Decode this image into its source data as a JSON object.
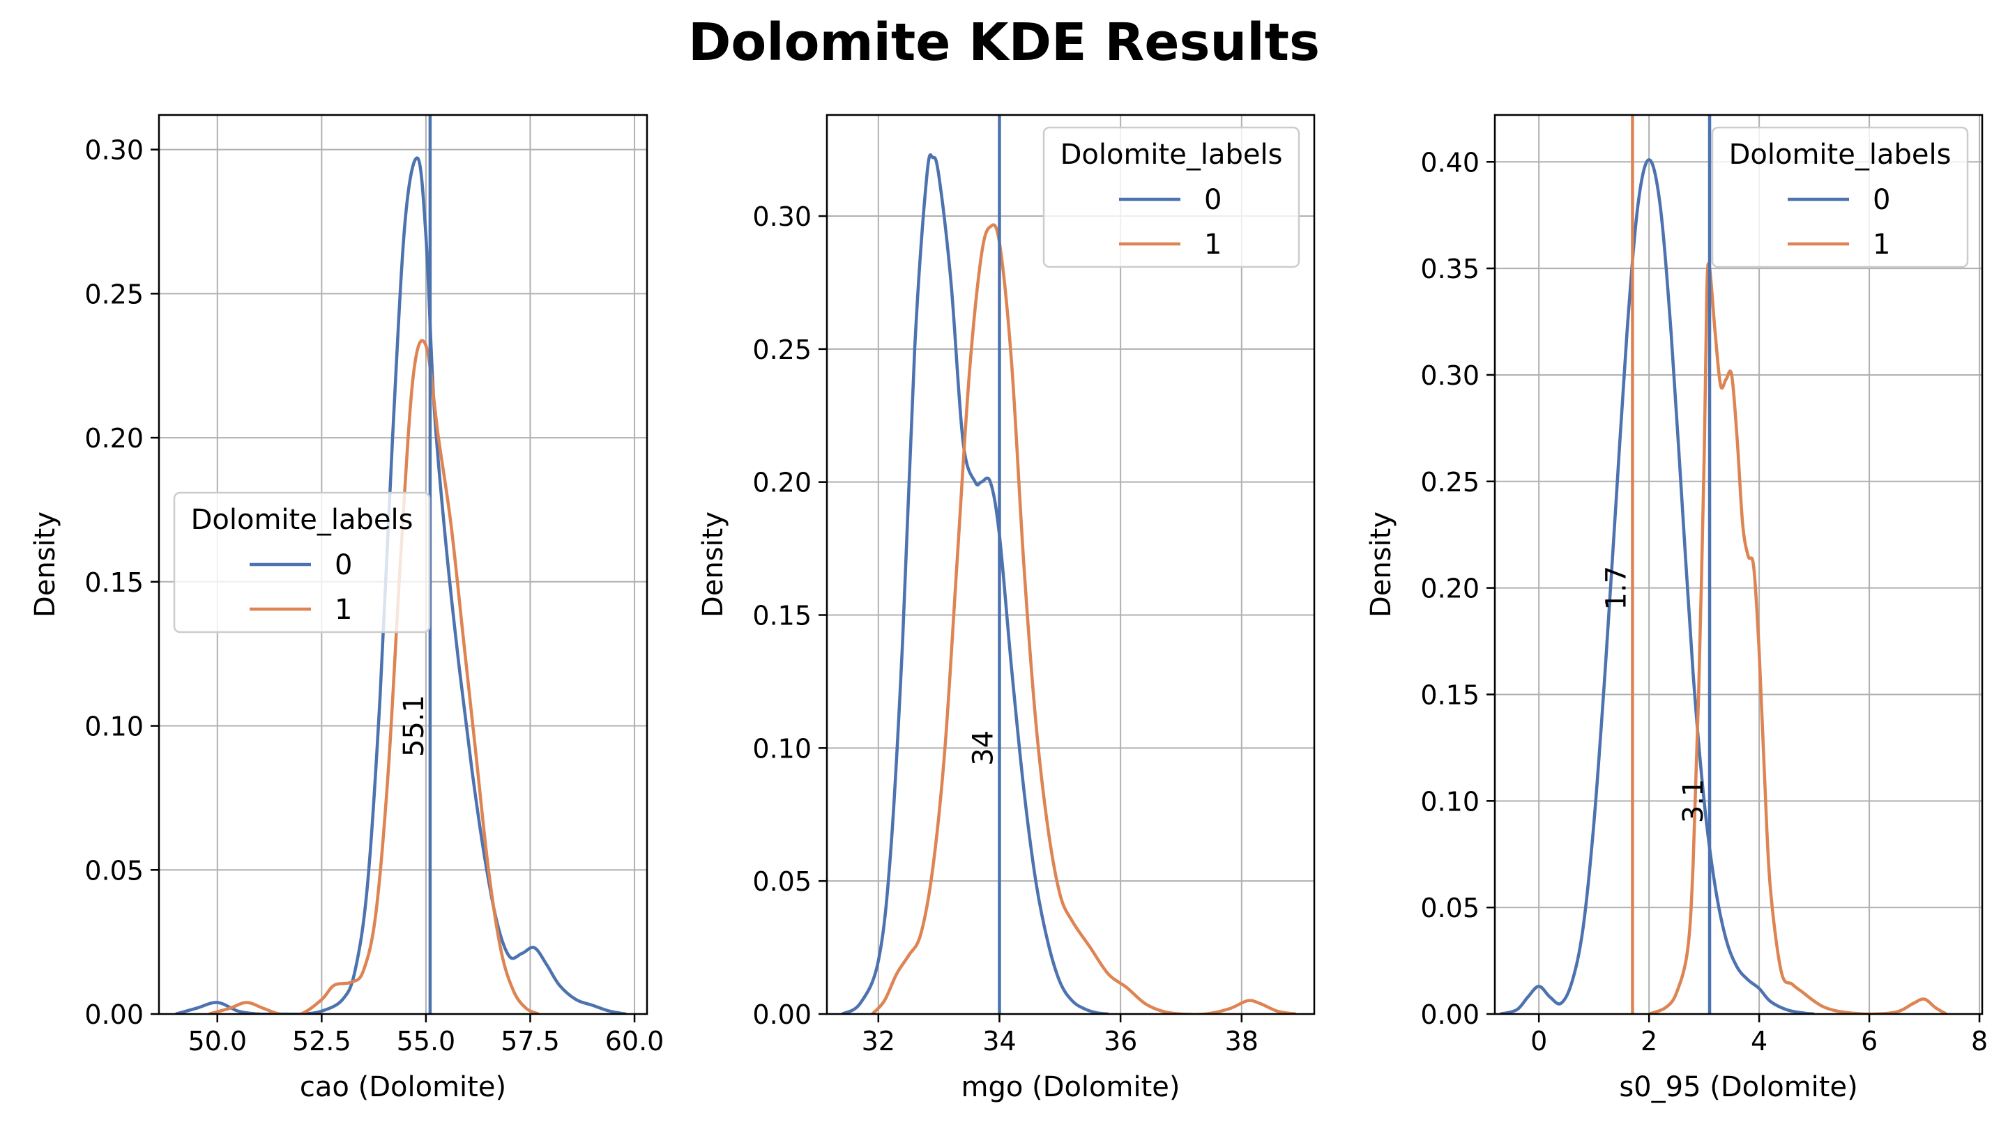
{
  "title": "Dolomite KDE Results",
  "colors": {
    "label_0": "#4c72b0",
    "label_1": "#dd8452",
    "grid": "#b0b0b0"
  },
  "chart_data": [
    {
      "type": "line",
      "subtype": "kde",
      "xlabel": "cao (Dolomite)",
      "ylabel": "Density",
      "xlim": [
        48.6,
        60.3
      ],
      "ylim": [
        0,
        0.312
      ],
      "xticks": [
        50.0,
        52.5,
        55.0,
        57.5,
        60.0
      ],
      "xtick_labels": [
        "50.0",
        "52.5",
        "55.0",
        "57.5",
        "60.0"
      ],
      "yticks": [
        0,
        0.05,
        0.1,
        0.15,
        0.2,
        0.25,
        0.3
      ],
      "ytick_labels": [
        "0.00",
        "0.05",
        "0.10",
        "0.15",
        "0.20",
        "0.25",
        "0.30"
      ],
      "grid": true,
      "legend": {
        "title": "Dolomite_labels",
        "entries": [
          "0",
          "1"
        ],
        "placement": "center-left"
      },
      "series": [
        {
          "name": "0",
          "x": [
            49.0,
            49.5,
            50.0,
            50.5,
            51.0,
            51.5,
            52.0,
            52.5,
            53.0,
            53.3,
            53.6,
            53.9,
            54.2,
            54.5,
            54.8,
            55.0,
            55.2,
            55.5,
            55.8,
            56.1,
            56.4,
            56.7,
            57.0,
            57.3,
            57.6,
            57.9,
            58.2,
            58.6,
            59.0,
            59.4,
            59.8
          ],
          "y": [
            0,
            0.002,
            0.004,
            0.001,
            0,
            0,
            0,
            0.001,
            0.005,
            0.015,
            0.045,
            0.11,
            0.2,
            0.275,
            0.297,
            0.27,
            0.21,
            0.16,
            0.12,
            0.085,
            0.055,
            0.032,
            0.02,
            0.021,
            0.023,
            0.017,
            0.01,
            0.005,
            0.003,
            0.001,
            0
          ]
        },
        {
          "name": "1",
          "x": [
            49.8,
            50.3,
            50.7,
            51.1,
            51.5,
            52.0,
            52.5,
            52.8,
            53.2,
            53.5,
            53.8,
            54.1,
            54.4,
            54.7,
            55.0,
            55.3,
            55.6,
            55.9,
            56.2,
            56.5,
            56.8,
            57.1,
            57.4,
            57.7
          ],
          "y": [
            0,
            0.002,
            0.004,
            0.002,
            0,
            0,
            0.005,
            0.01,
            0.011,
            0.015,
            0.035,
            0.085,
            0.16,
            0.222,
            0.232,
            0.2,
            0.17,
            0.13,
            0.09,
            0.05,
            0.022,
            0.008,
            0.002,
            0
          ]
        }
      ],
      "vlines": [
        {
          "x": 55.1,
          "label": "55.1",
          "color_key": "label_0"
        }
      ]
    },
    {
      "type": "line",
      "subtype": "kde",
      "xlabel": "mgo (Dolomite)",
      "ylabel": "Density",
      "xlim": [
        31.15,
        39.2
      ],
      "ylim": [
        0,
        0.338
      ],
      "xticks": [
        32,
        34,
        36,
        38
      ],
      "xtick_labels": [
        "32",
        "34",
        "36",
        "38"
      ],
      "yticks": [
        0,
        0.05,
        0.1,
        0.15,
        0.2,
        0.25,
        0.3
      ],
      "ytick_labels": [
        "0.00",
        "0.05",
        "0.10",
        "0.15",
        "0.20",
        "0.25",
        "0.30"
      ],
      "grid": true,
      "legend": {
        "title": "Dolomite_labels",
        "entries": [
          "0",
          "1"
        ],
        "placement": "top-right"
      },
      "series": [
        {
          "name": "0",
          "x": [
            31.4,
            31.7,
            32.0,
            32.2,
            32.4,
            32.6,
            32.8,
            32.9,
            33.0,
            33.2,
            33.4,
            33.6,
            33.7,
            33.85,
            34.0,
            34.2,
            34.4,
            34.6,
            34.8,
            35.0,
            35.2,
            35.4,
            35.6,
            35.8
          ],
          "y": [
            0,
            0.004,
            0.02,
            0.06,
            0.14,
            0.25,
            0.315,
            0.322,
            0.315,
            0.275,
            0.215,
            0.2,
            0.2,
            0.2,
            0.18,
            0.13,
            0.085,
            0.05,
            0.027,
            0.012,
            0.005,
            0.002,
            0.0005,
            0
          ]
        },
        {
          "name": "1",
          "x": [
            31.9,
            32.1,
            32.3,
            32.5,
            32.7,
            32.9,
            33.1,
            33.3,
            33.5,
            33.7,
            33.85,
            34.0,
            34.2,
            34.4,
            34.6,
            34.8,
            35.0,
            35.2,
            35.5,
            35.8,
            36.1,
            36.4,
            36.7,
            37.0,
            37.4,
            37.8,
            38.1,
            38.3,
            38.6,
            38.9
          ],
          "y": [
            0,
            0.005,
            0.015,
            0.022,
            0.03,
            0.055,
            0.1,
            0.17,
            0.24,
            0.285,
            0.296,
            0.29,
            0.245,
            0.17,
            0.11,
            0.07,
            0.045,
            0.035,
            0.025,
            0.015,
            0.01,
            0.004,
            0.001,
            0,
            0,
            0.002,
            0.005,
            0.004,
            0.001,
            0
          ]
        }
      ],
      "vlines": [
        {
          "x": 34.0,
          "label": "34",
          "color_key": "label_0"
        }
      ]
    },
    {
      "type": "line",
      "subtype": "kde",
      "xlabel": "s0_95 (Dolomite)",
      "ylabel": "Density",
      "xlim": [
        -0.8,
        8.05
      ],
      "ylim": [
        0,
        0.422
      ],
      "xticks": [
        0,
        2,
        4,
        6,
        8
      ],
      "xtick_labels": [
        "0",
        "2",
        "4",
        "6",
        "8"
      ],
      "yticks": [
        0,
        0.05,
        0.1,
        0.15,
        0.2,
        0.25,
        0.3,
        0.35,
        0.4
      ],
      "ytick_labels": [
        "0.00",
        "0.05",
        "0.10",
        "0.15",
        "0.20",
        "0.25",
        "0.30",
        "0.35",
        "0.40"
      ],
      "grid": true,
      "legend": {
        "title": "Dolomite_labels",
        "entries": [
          "0",
          "1"
        ],
        "placement": "top-right"
      },
      "series": [
        {
          "name": "0",
          "x": [
            -0.7,
            -0.4,
            -0.2,
            0.0,
            0.2,
            0.4,
            0.6,
            0.8,
            1.0,
            1.2,
            1.4,
            1.6,
            1.8,
            2.0,
            2.2,
            2.4,
            2.6,
            2.8,
            3.0,
            3.2,
            3.4,
            3.6,
            3.8,
            4.0,
            4.2,
            4.5,
            4.8,
            5.0
          ],
          "y": [
            0,
            0.002,
            0.008,
            0.013,
            0.008,
            0.005,
            0.015,
            0.04,
            0.09,
            0.16,
            0.24,
            0.32,
            0.38,
            0.401,
            0.38,
            0.32,
            0.24,
            0.16,
            0.1,
            0.06,
            0.035,
            0.022,
            0.016,
            0.012,
            0.006,
            0.002,
            0.0005,
            0
          ]
        },
        {
          "name": "1",
          "x": [
            2.0,
            2.3,
            2.5,
            2.7,
            2.8,
            2.9,
            3.0,
            3.05,
            3.1,
            3.2,
            3.3,
            3.4,
            3.5,
            3.6,
            3.7,
            3.8,
            3.9,
            4.0,
            4.1,
            4.2,
            4.4,
            4.6,
            4.8,
            5.0,
            5.2,
            5.5,
            6.0,
            6.5,
            6.8,
            7.0,
            7.2,
            7.4
          ],
          "y": [
            0,
            0.003,
            0.01,
            0.03,
            0.07,
            0.15,
            0.26,
            0.34,
            0.35,
            0.32,
            0.295,
            0.298,
            0.3,
            0.27,
            0.23,
            0.215,
            0.21,
            0.17,
            0.11,
            0.06,
            0.02,
            0.014,
            0.01,
            0.006,
            0.003,
            0.001,
            0,
            0.001,
            0.005,
            0.007,
            0.003,
            0
          ]
        }
      ],
      "vlines": [
        {
          "x": 1.7,
          "label": "1.7",
          "color_key": "label_1"
        },
        {
          "x": 3.1,
          "label": "3.1",
          "color_key": "label_0"
        }
      ]
    }
  ]
}
